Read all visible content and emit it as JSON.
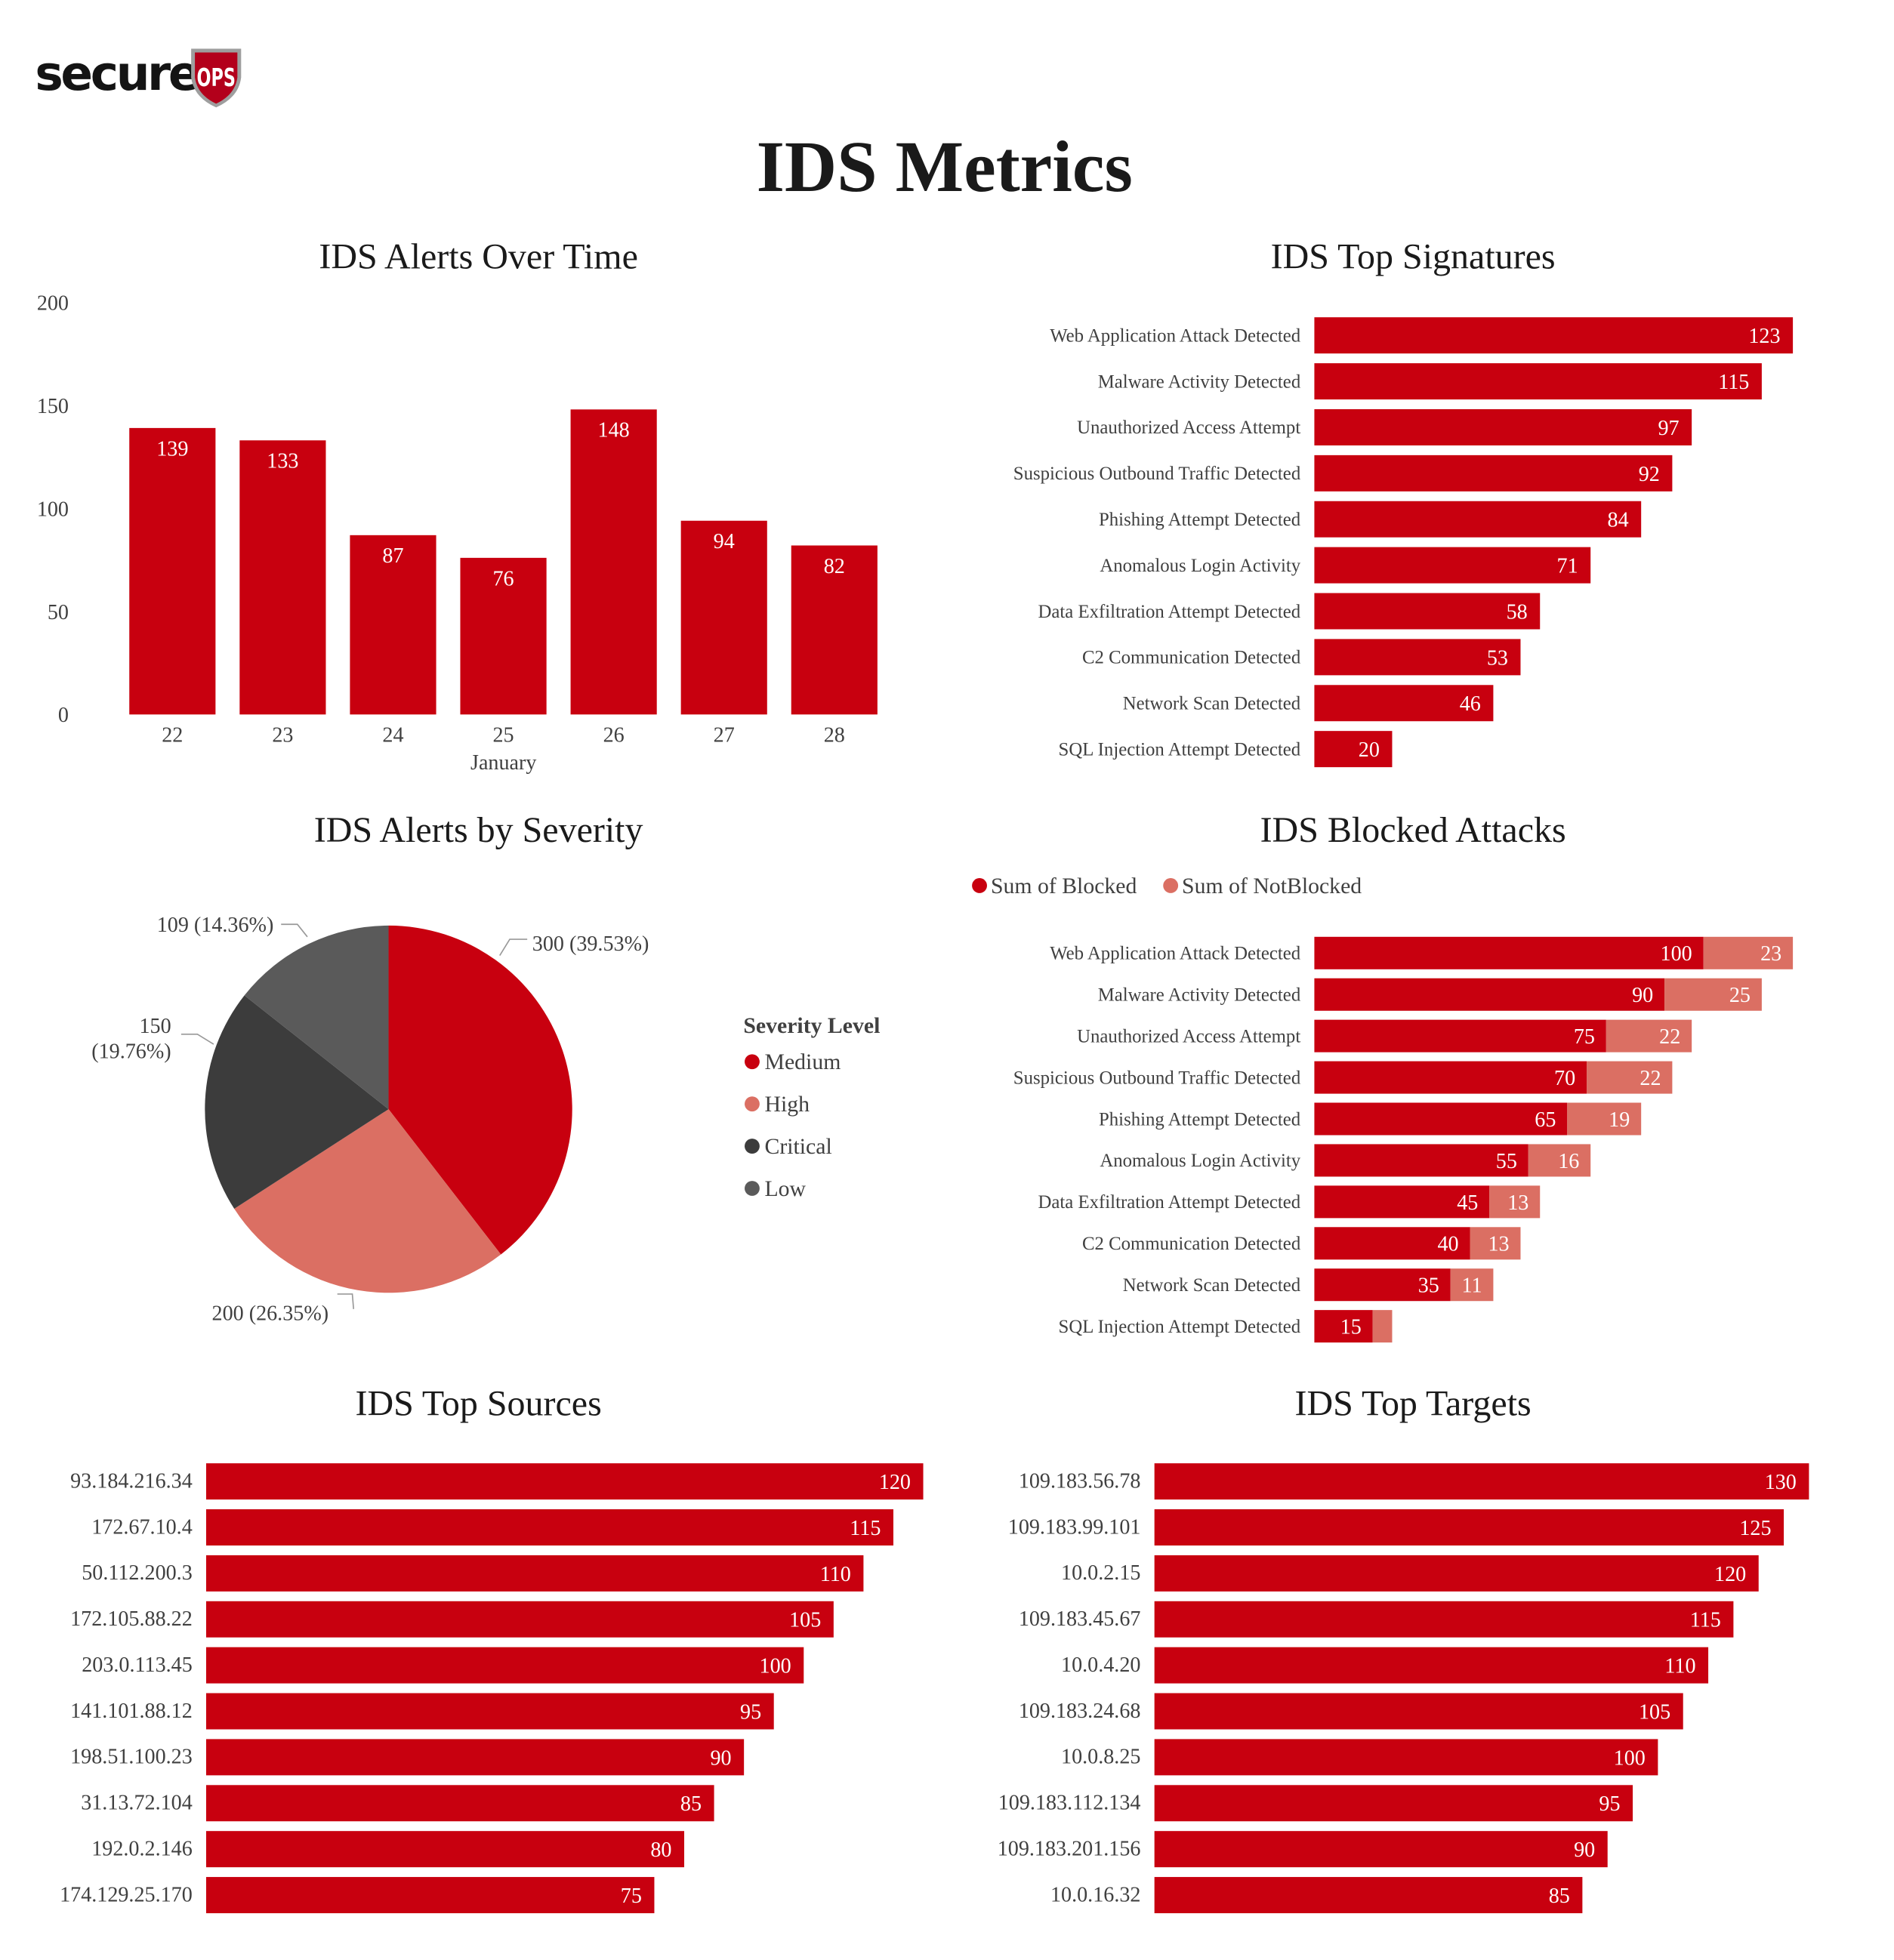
{
  "logo": {
    "text": "secure",
    "badge": "OPS"
  },
  "page_title": "IDS Metrics",
  "colors": {
    "red": "#C8000F",
    "light_red": "#DB6F63",
    "dark": "#3C3C3C",
    "gray": "#5A5A5A"
  },
  "chart_data": [
    {
      "id": "alerts_over_time",
      "type": "bar",
      "title": "IDS Alerts Over Time",
      "categories": [
        "22",
        "23",
        "24",
        "25",
        "26",
        "27",
        "28"
      ],
      "xlabel": "January",
      "values": [
        139,
        133,
        87,
        76,
        148,
        94,
        82
      ],
      "ylim": [
        0,
        200
      ],
      "yticks": [
        "0",
        "50",
        "100",
        "150",
        "200"
      ],
      "grid": false
    },
    {
      "id": "top_signatures",
      "type": "bar",
      "orientation": "horizontal",
      "title": "IDS Top Signatures",
      "categories": [
        "Web Application Attack Detected",
        "Malware Activity Detected",
        "Unauthorized Access Attempt",
        "Suspicious Outbound Traffic Detected",
        "Phishing Attempt Detected",
        "Anomalous Login Activity",
        "Data Exfiltration Attempt Detected",
        "C2 Communication Detected",
        "Network Scan Detected",
        "SQL Injection Attempt Detected"
      ],
      "values": [
        123,
        115,
        97,
        92,
        84,
        71,
        58,
        53,
        46,
        20
      ]
    },
    {
      "id": "alerts_by_severity",
      "type": "pie",
      "title": "IDS Alerts by Severity",
      "legend_title": "Severity Level",
      "legend_position": "right",
      "categories": [
        "Medium",
        "High",
        "Critical",
        "Low"
      ],
      "values": [
        300,
        200,
        150,
        109
      ],
      "data_labels": [
        "300 (39.53%)",
        "200 (26.35%)",
        "150 (19.76%)",
        "109 (14.36%)"
      ]
    },
    {
      "id": "blocked_attacks",
      "type": "bar",
      "orientation": "horizontal",
      "stacked": true,
      "title": "IDS Blocked Attacks",
      "legend_position": "top",
      "categories": [
        "Web Application Attack Detected",
        "Malware Activity Detected",
        "Unauthorized Access Attempt",
        "Suspicious Outbound Traffic Detected",
        "Phishing Attempt Detected",
        "Anomalous Login Activity",
        "Data Exfiltration Attempt Detected",
        "C2 Communication Detected",
        "Network Scan Detected",
        "SQL Injection Attempt Detected"
      ],
      "series": [
        {
          "name": "Sum of Blocked",
          "values": [
            100,
            90,
            75,
            70,
            65,
            55,
            45,
            40,
            35,
            15
          ]
        },
        {
          "name": "Sum of NotBlocked",
          "values": [
            23,
            25,
            22,
            22,
            19,
            16,
            13,
            13,
            11,
            5
          ]
        }
      ]
    },
    {
      "id": "top_sources",
      "type": "bar",
      "orientation": "horizontal",
      "title": "IDS Top Sources",
      "categories": [
        "93.184.216.34",
        "172.67.10.4",
        "50.112.200.3",
        "172.105.88.22",
        "203.0.113.45",
        "141.101.88.12",
        "198.51.100.23",
        "31.13.72.104",
        "192.0.2.146",
        "174.129.25.170"
      ],
      "values": [
        120,
        115,
        110,
        105,
        100,
        95,
        90,
        85,
        80,
        75
      ]
    },
    {
      "id": "top_targets",
      "type": "bar",
      "orientation": "horizontal",
      "title": "IDS Top Targets",
      "categories": [
        "109.183.56.78",
        "109.183.99.101",
        "10.0.2.15",
        "109.183.45.67",
        "10.0.4.20",
        "109.183.24.68",
        "10.0.8.25",
        "109.183.112.134",
        "109.183.201.156",
        "10.0.16.32"
      ],
      "values": [
        130,
        125,
        120,
        115,
        110,
        105,
        100,
        95,
        90,
        85
      ]
    }
  ]
}
